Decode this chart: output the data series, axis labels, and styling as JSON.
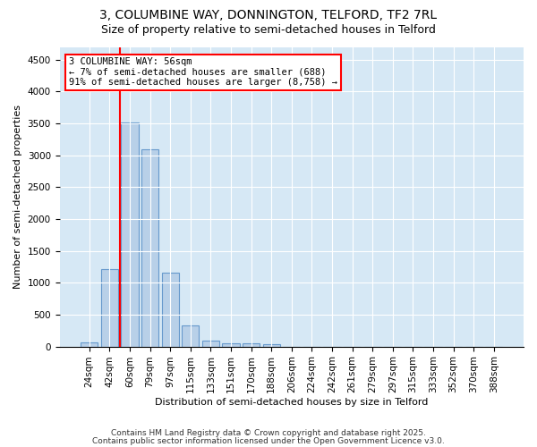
{
  "title": "3, COLUMBINE WAY, DONNINGTON, TELFORD, TF2 7RL",
  "subtitle": "Size of property relative to semi-detached houses in Telford",
  "xlabel": "Distribution of semi-detached houses by size in Telford",
  "ylabel": "Number of semi-detached properties",
  "bar_labels": [
    "24sqm",
    "42sqm",
    "60sqm",
    "79sqm",
    "97sqm",
    "115sqm",
    "133sqm",
    "151sqm",
    "170sqm",
    "188sqm",
    "206sqm",
    "224sqm",
    "242sqm",
    "261sqm",
    "279sqm",
    "297sqm",
    "315sqm",
    "333sqm",
    "352sqm",
    "370sqm",
    "388sqm"
  ],
  "bar_values": [
    70,
    1220,
    3510,
    3100,
    1160,
    330,
    95,
    55,
    45,
    30,
    0,
    0,
    0,
    0,
    0,
    0,
    0,
    0,
    0,
    0,
    0
  ],
  "bar_color": "#b8d0e8",
  "bar_edge_color": "#6699cc",
  "annotation_text": "3 COLUMBINE WAY: 56sqm\n← 7% of semi-detached houses are smaller (688)\n91% of semi-detached houses are larger (8,758) →",
  "vline_x": 1.5,
  "ylim": [
    0,
    4700
  ],
  "yticks": [
    0,
    500,
    1000,
    1500,
    2000,
    2500,
    3000,
    3500,
    4000,
    4500
  ],
  "plot_bg_color": "#d6e8f5",
  "footer1": "Contains HM Land Registry data © Crown copyright and database right 2025.",
  "footer2": "Contains public sector information licensed under the Open Government Licence v3.0.",
  "title_fontsize": 10,
  "subtitle_fontsize": 9,
  "annot_fontsize": 7.5,
  "axis_fontsize": 8,
  "tick_fontsize": 7.5
}
